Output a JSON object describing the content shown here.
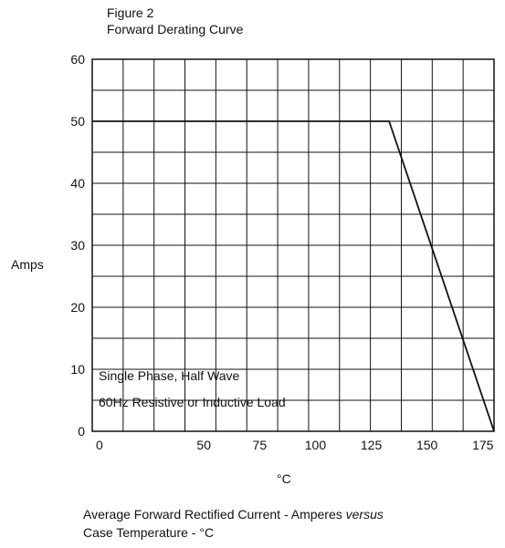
{
  "chart_data": {
    "type": "line",
    "title": "Figure 2",
    "subtitle": "Forward Derating Curve",
    "xlabel": "°C",
    "ylabel": "Amps",
    "xlim": [
      0,
      180
    ],
    "ylim": [
      0,
      60
    ],
    "x_ticks": [
      "0",
      "50",
      "75",
      "100",
      "125",
      "150",
      "175"
    ],
    "y_ticks": [
      "0",
      "10",
      "20",
      "30",
      "40",
      "50",
      "60"
    ],
    "grid": true,
    "annotation": [
      "Single Phase, Half Wave",
      "60Hz Resistive or Inductive Load"
    ],
    "series": [
      {
        "x": [
          0,
          133,
          180
        ],
        "y": [
          50,
          50,
          0
        ]
      }
    ]
  },
  "caption": {
    "line1_prefix": "Average Forward Rectified Current  -  Amperes ",
    "line1_emph": "versus",
    "line2": "Case Temperature  - °C"
  }
}
